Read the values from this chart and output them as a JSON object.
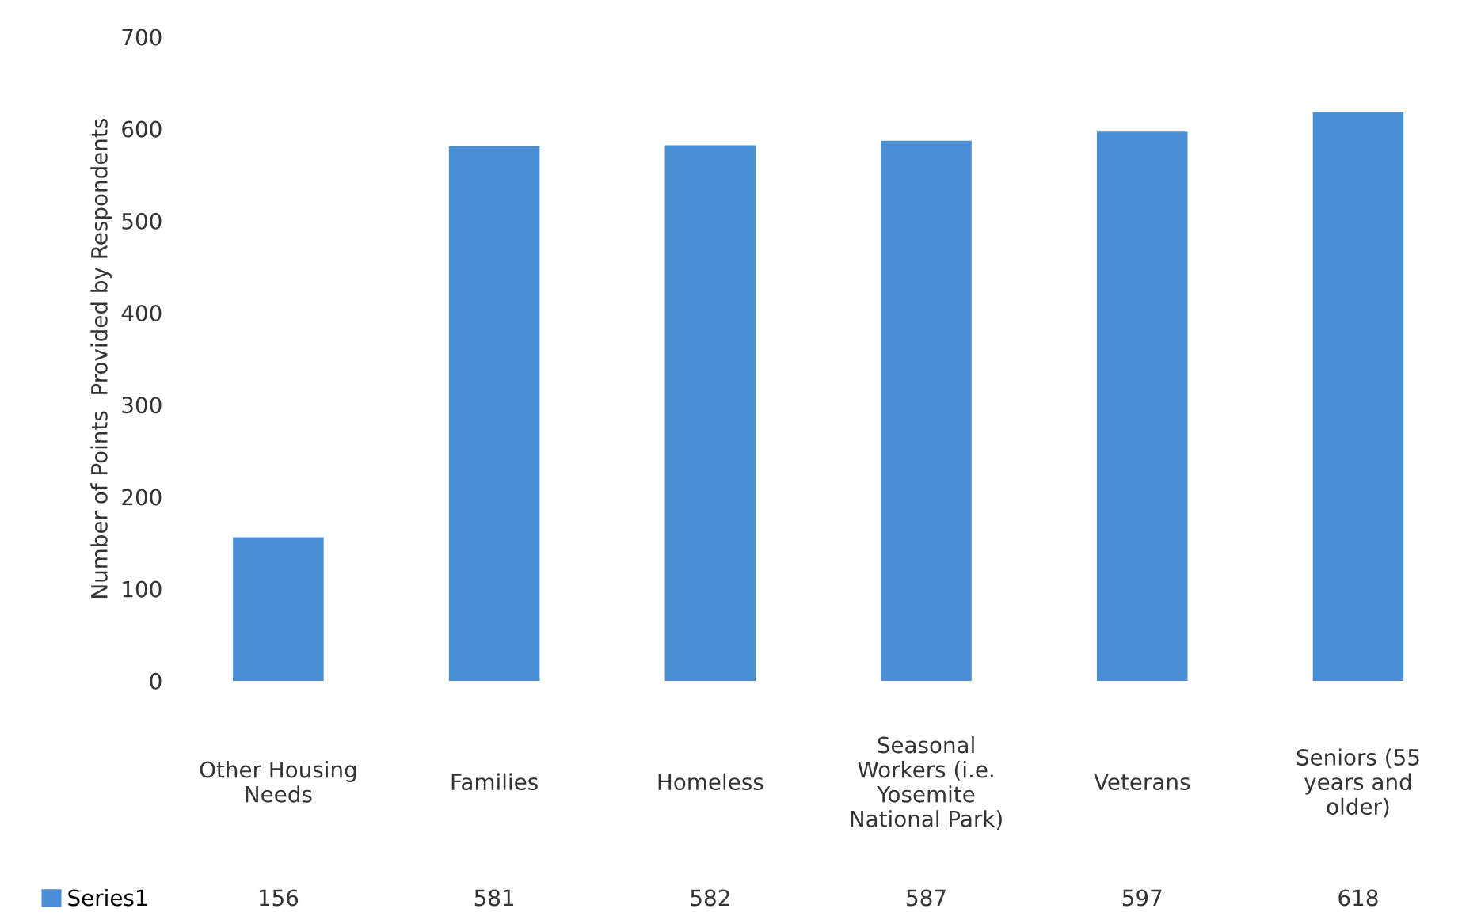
{
  "chart_data": {
    "type": "bar",
    "ylabel": "Number of Points  Provided by Respondents",
    "categories": [
      "Other Housing Needs",
      "Families",
      "Homeless",
      "Seasonal Workers (i.e. Yosemite National Park)",
      "Veterans",
      "Seniors (55 years and older)"
    ],
    "series": [
      {
        "name": "Series1",
        "color": "#4a8fd6",
        "values": [
          156,
          581,
          582,
          587,
          597,
          618
        ]
      }
    ],
    "ylim": [
      0,
      700
    ],
    "yticks": [
      0,
      100,
      200,
      300,
      400,
      500,
      600,
      700
    ],
    "data_labels": true,
    "legend": "bottom left",
    "grid": false
  }
}
